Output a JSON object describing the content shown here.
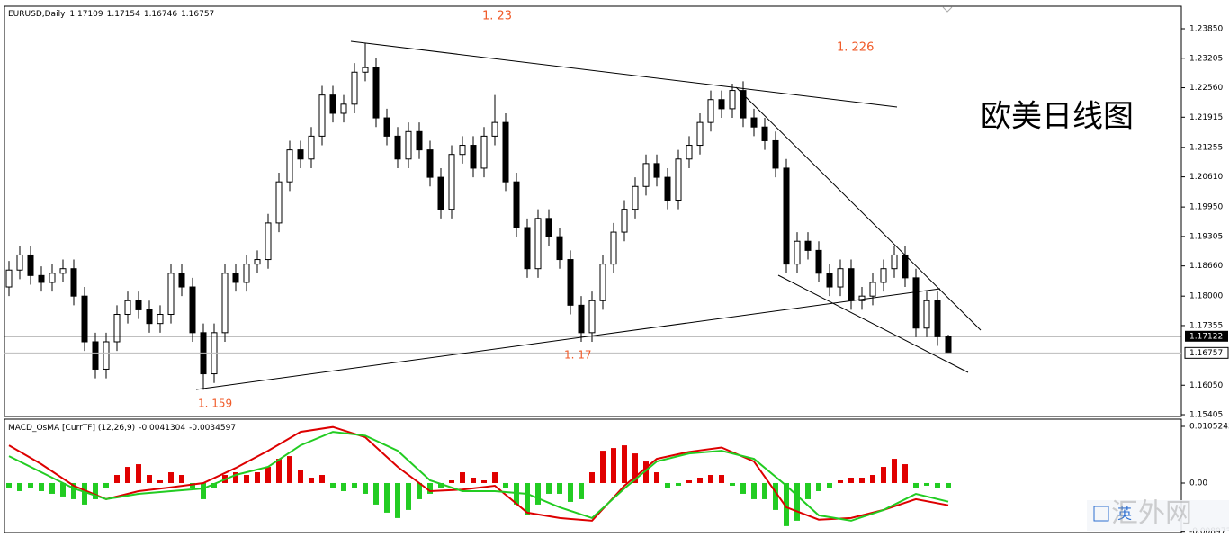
{
  "chart_data": [
    {
      "type": "candlestick",
      "title": "EURUSD,Daily",
      "open": [
        1.182,
        1.1857,
        1.189,
        1.1845,
        1.183,
        1.185,
        1.186,
        1.18,
        1.17,
        1.164,
        1.17,
        1.176,
        1.179,
        1.177,
        1.174,
        1.176,
        1.185,
        1.182,
        1.172,
        1.163,
        1.172,
        1.185,
        1.183,
        1.187,
        1.188,
        1.196,
        1.205,
        1.212,
        1.21,
        1.215,
        1.224,
        1.22,
        1.222,
        1.229,
        1.23,
        1.219,
        1.215,
        1.21,
        1.216,
        1.212,
        1.206,
        1.199,
        1.211,
        1.213,
        1.208,
        1.215,
        1.218,
        1.205,
        1.195,
        1.186,
        1.197,
        1.193,
        1.188,
        1.178,
        1.172,
        1.179,
        1.187,
        1.194,
        1.199,
        1.204,
        1.209,
        1.206,
        1.201,
        1.21,
        1.213,
        1.218,
        1.223,
        1.221,
        1.225,
        1.219,
        1.217,
        1.214,
        1.208,
        1.187,
        1.192,
        1.19,
        1.185,
        1.182,
        1.186,
        1.179,
        1.18,
        1.183,
        1.186,
        1.189,
        1.184,
        1.173,
        1.179,
        1.17109
      ],
      "high": [
        1.1877,
        1.191,
        1.191,
        1.1865,
        1.187,
        1.188,
        1.188,
        1.182,
        1.172,
        1.172,
        1.178,
        1.181,
        1.181,
        1.179,
        1.178,
        1.187,
        1.187,
        1.184,
        1.174,
        1.174,
        1.187,
        1.187,
        1.189,
        1.19,
        1.198,
        1.207,
        1.214,
        1.214,
        1.217,
        1.226,
        1.226,
        1.224,
        1.231,
        1.2353,
        1.232,
        1.221,
        1.217,
        1.218,
        1.218,
        1.214,
        1.208,
        1.213,
        1.215,
        1.215,
        1.217,
        1.224,
        1.22,
        1.207,
        1.197,
        1.199,
        1.199,
        1.195,
        1.19,
        1.18,
        1.181,
        1.189,
        1.196,
        1.201,
        1.206,
        1.211,
        1.211,
        1.208,
        1.212,
        1.215,
        1.22,
        1.225,
        1.225,
        1.2265,
        1.227,
        1.221,
        1.219,
        1.216,
        1.21,
        1.194,
        1.194,
        1.192,
        1.187,
        1.188,
        1.188,
        1.182,
        1.185,
        1.188,
        1.191,
        1.191,
        1.186,
        1.181,
        1.181,
        1.17154
      ],
      "low": [
        1.18,
        1.1837,
        1.1825,
        1.181,
        1.181,
        1.183,
        1.178,
        1.168,
        1.162,
        1.162,
        1.168,
        1.174,
        1.175,
        1.172,
        1.172,
        1.174,
        1.18,
        1.17,
        1.1595,
        1.161,
        1.17,
        1.181,
        1.181,
        1.185,
        1.186,
        1.194,
        1.203,
        1.208,
        1.208,
        1.213,
        1.218,
        1.218,
        1.22,
        1.227,
        1.217,
        1.213,
        1.208,
        1.208,
        1.21,
        1.204,
        1.197,
        1.197,
        1.209,
        1.206,
        1.206,
        1.213,
        1.203,
        1.193,
        1.184,
        1.184,
        1.191,
        1.186,
        1.176,
        1.17,
        1.17,
        1.177,
        1.185,
        1.192,
        1.197,
        1.202,
        1.204,
        1.199,
        1.199,
        1.208,
        1.211,
        1.216,
        1.219,
        1.219,
        1.217,
        1.215,
        1.212,
        1.206,
        1.185,
        1.185,
        1.188,
        1.183,
        1.18,
        1.18,
        1.177,
        1.177,
        1.178,
        1.181,
        1.184,
        1.182,
        1.171,
        1.171,
        1.1691,
        1.16746
      ],
      "close": [
        1.1857,
        1.189,
        1.1845,
        1.183,
        1.185,
        1.186,
        1.18,
        1.17,
        1.164,
        1.17,
        1.176,
        1.179,
        1.177,
        1.174,
        1.176,
        1.185,
        1.182,
        1.172,
        1.163,
        1.172,
        1.185,
        1.183,
        1.187,
        1.188,
        1.196,
        1.205,
        1.212,
        1.21,
        1.215,
        1.224,
        1.22,
        1.222,
        1.229,
        1.23,
        1.219,
        1.215,
        1.21,
        1.216,
        1.212,
        1.206,
        1.199,
        1.211,
        1.213,
        1.208,
        1.215,
        1.218,
        1.205,
        1.195,
        1.186,
        1.197,
        1.193,
        1.188,
        1.178,
        1.172,
        1.179,
        1.187,
        1.194,
        1.199,
        1.204,
        1.209,
        1.206,
        1.201,
        1.21,
        1.213,
        1.218,
        1.223,
        1.221,
        1.225,
        1.219,
        1.217,
        1.214,
        1.208,
        1.187,
        1.192,
        1.19,
        1.185,
        1.182,
        1.186,
        1.179,
        1.18,
        1.183,
        1.186,
        1.189,
        1.184,
        1.173,
        1.179,
        1.1711,
        1.16757
      ],
      "bid": 1.17122,
      "ylim": [
        1.15366,
        1.24342
      ],
      "yticks": [
        {
          "value": 1.2385,
          "label": "1.23850"
        },
        {
          "value": 1.23205,
          "label": "1.23205"
        },
        {
          "value": 1.2256,
          "label": "1.22560"
        },
        {
          "value": 1.21915,
          "label": "1.21915"
        },
        {
          "value": 1.21255,
          "label": "1.21255"
        },
        {
          "value": 1.2061,
          "label": "1.20610"
        },
        {
          "value": 1.1995,
          "label": "1.19950"
        },
        {
          "value": 1.19305,
          "label": "1.19305"
        },
        {
          "value": 1.1866,
          "label": "1.18660"
        },
        {
          "value": 1.18,
          "label": "1.18000"
        },
        {
          "value": 1.17355,
          "label": "1.17355"
        },
        {
          "value": 1.1605,
          "label": "1.16050"
        },
        {
          "value": 1.15405,
          "label": "1.15405"
        }
      ],
      "annotations": [
        "1. 23",
        "1. 226",
        "1. 159",
        "1. 17",
        "欧美日线图"
      ]
    },
    {
      "type": "macd",
      "title": "MACD_OsMA [CurrTF] (12,26,9)",
      "histogram": {
        "positive_color": "#e00000",
        "negative_color": "#22cc22",
        "values": [
          -0.001,
          -0.0015,
          -0.001,
          -0.0015,
          -0.002,
          -0.0025,
          -0.003,
          -0.004,
          -0.003,
          -0.001,
          0.0015,
          0.003,
          0.0035,
          0.0015,
          0.0005,
          0.002,
          0.0015,
          -0.001,
          -0.003,
          -0.001,
          0.0015,
          0.002,
          0.0015,
          0.002,
          0.003,
          0.0045,
          0.005,
          0.0025,
          0.001,
          0.0015,
          -0.001,
          -0.0015,
          -0.001,
          -0.002,
          -0.004,
          -0.0055,
          -0.0065,
          -0.005,
          -0.003,
          -0.002,
          -0.001,
          0.0005,
          0.002,
          0.001,
          0.0005,
          0.002,
          -0.001,
          -0.004,
          -0.006,
          -0.004,
          -0.002,
          -0.002,
          -0.0035,
          -0.003,
          0.002,
          0.006,
          0.0065,
          0.007,
          0.0055,
          0.004,
          0.002,
          -0.001,
          -0.0005,
          0.0005,
          0.001,
          0.0015,
          0.0015,
          -0.0005,
          -0.002,
          -0.003,
          -0.003,
          -0.005,
          -0.008,
          -0.007,
          -0.003,
          -0.0015,
          -0.001,
          0.0005,
          0.001,
          0.001,
          0.0015,
          0.003,
          0.0045,
          0.0035,
          -0.001,
          -0.0005,
          -0.001,
          -0.001
        ]
      },
      "lines": [
        {
          "color": "#dd0000",
          "values": [
            0.007,
            0.0035,
            -0.0005,
            -0.003,
            -0.0015,
            -0.0008,
            0,
            0.0028,
            0.006,
            0.0095,
            0.0104,
            0.0085,
            0.003,
            -0.0015,
            -0.0012,
            -0.0005,
            -0.0055,
            -0.0065,
            -0.007,
            -0.0005,
            0.0045,
            0.0058,
            0.0066,
            0.004,
            -0.0045,
            -0.0068,
            -0.0065,
            -0.005,
            -0.003,
            -0.0041304
          ]
        },
        {
          "color": "#22cc22",
          "values": [
            0.005,
            0.002,
            -0.001,
            -0.003,
            -0.002,
            -0.0015,
            -0.001,
            0.0015,
            0.003,
            0.007,
            0.0095,
            0.0088,
            0.006,
            0.0005,
            -0.0015,
            -0.0015,
            -0.002,
            -0.0045,
            -0.0065,
            -0.001,
            0.004,
            0.0055,
            0.006,
            0.0045,
            -0.0005,
            -0.006,
            -0.007,
            -0.005,
            -0.002,
            -0.0034597
          ]
        }
      ],
      "ylim": [
        -0.00919,
        0.01186
      ],
      "yticks": [
        0.0105245,
        {
          "value": 0,
          "label": "0.00"
        },
        -0.008973
      ]
    }
  ],
  "overlay": {
    "watermark": "汇外网",
    "ime": "英"
  }
}
